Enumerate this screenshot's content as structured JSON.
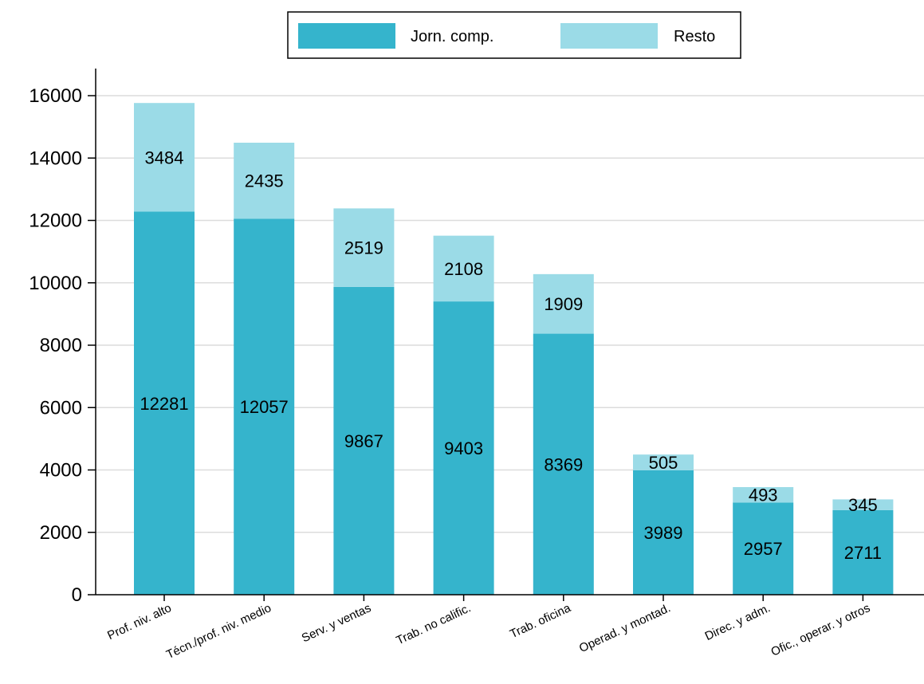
{
  "chart_data": {
    "type": "bar",
    "stacked": true,
    "categories": [
      "Prof. niv. alto",
      "Técn./prof. niv. medio",
      "Serv. y ventas",
      "Trab. no calific.",
      "Trab. oficina",
      "Operad. y montad.",
      "Direc. y adm.",
      "Ofic., operar. y otros"
    ],
    "series": [
      {
        "name": "Jorn. comp.",
        "color": "#35b4cc",
        "values": [
          12281,
          12057,
          9867,
          9403,
          8369,
          3989,
          2957,
          2711
        ]
      },
      {
        "name": "Resto",
        "color": "#9bdbe7",
        "values": [
          3484,
          2435,
          2519,
          2108,
          1909,
          505,
          493,
          345
        ]
      }
    ],
    "ylim": [
      0,
      17000
    ],
    "yticks": [
      0,
      2000,
      4000,
      6000,
      8000,
      10000,
      12000,
      14000,
      16000
    ],
    "grid": true,
    "legend": "top-center",
    "title": "",
    "xlabel": "",
    "ylabel": ""
  }
}
